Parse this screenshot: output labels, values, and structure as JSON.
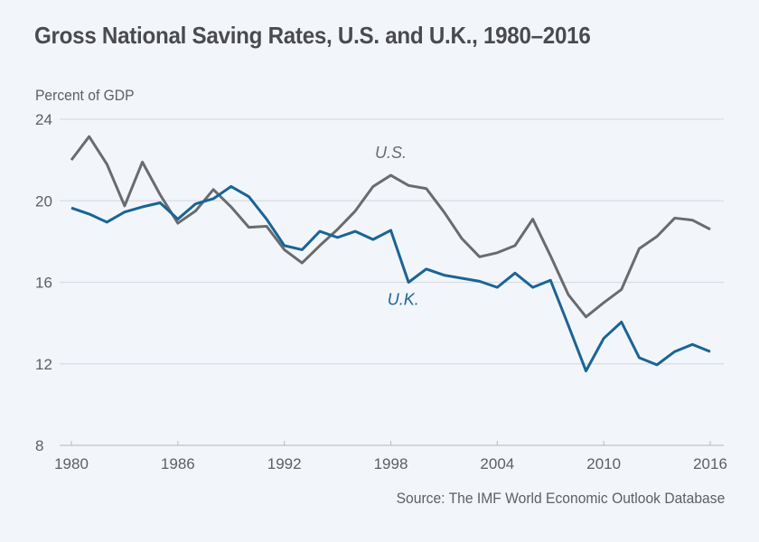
{
  "chart_data": {
    "type": "line",
    "title": "Gross National Saving Rates, U.S. and U.K., 1980–2016",
    "ylabel": "Percent of GDP",
    "xlabel": "",
    "source": "Source: The IMF World Economic Outlook Database",
    "ylim": [
      8,
      24
    ],
    "xlim": [
      1980,
      2016
    ],
    "yticks": [
      8,
      12,
      16,
      20,
      24
    ],
    "xticks": [
      1980,
      1986,
      1992,
      1998,
      2004,
      2010,
      2016
    ],
    "grid": true,
    "legend": "inline labels",
    "x": [
      1980,
      1981,
      1982,
      1983,
      1984,
      1985,
      1986,
      1987,
      1988,
      1989,
      1990,
      1991,
      1992,
      1993,
      1994,
      1995,
      1996,
      1997,
      1998,
      1999,
      2000,
      2001,
      2002,
      2003,
      2004,
      2005,
      2006,
      2007,
      2008,
      2009,
      2010,
      2011,
      2012,
      2013,
      2014,
      2015,
      2016
    ],
    "series": [
      {
        "name": "U.S.",
        "label": "U.S.",
        "label_anchor": [
          1998,
          22.1
        ],
        "color": "#6b6b6e",
        "values": [
          22.0,
          23.15,
          21.8,
          19.75,
          21.9,
          20.3,
          18.9,
          19.5,
          20.55,
          19.7,
          18.7,
          18.75,
          17.6,
          16.95,
          17.8,
          18.6,
          19.5,
          20.7,
          21.25,
          20.75,
          20.6,
          19.45,
          18.15,
          17.25,
          17.45,
          17.8,
          19.1,
          17.3,
          15.4,
          14.3,
          15.0,
          15.65,
          17.65,
          18.25,
          19.15,
          19.05,
          18.6
        ]
      },
      {
        "name": "U.K.",
        "label": "U.K.",
        "label_anchor": [
          1998.7,
          14.9
        ],
        "color": "#1a6496",
        "values": [
          19.65,
          19.35,
          18.95,
          19.45,
          19.7,
          19.9,
          19.1,
          19.85,
          20.1,
          20.7,
          20.2,
          19.1,
          17.8,
          17.6,
          18.5,
          18.2,
          18.5,
          18.1,
          18.55,
          16.0,
          16.65,
          16.35,
          16.2,
          16.05,
          15.75,
          16.45,
          15.75,
          16.1,
          13.9,
          11.65,
          13.25,
          14.05,
          12.3,
          11.95,
          12.6,
          12.95,
          12.6
        ]
      }
    ]
  }
}
